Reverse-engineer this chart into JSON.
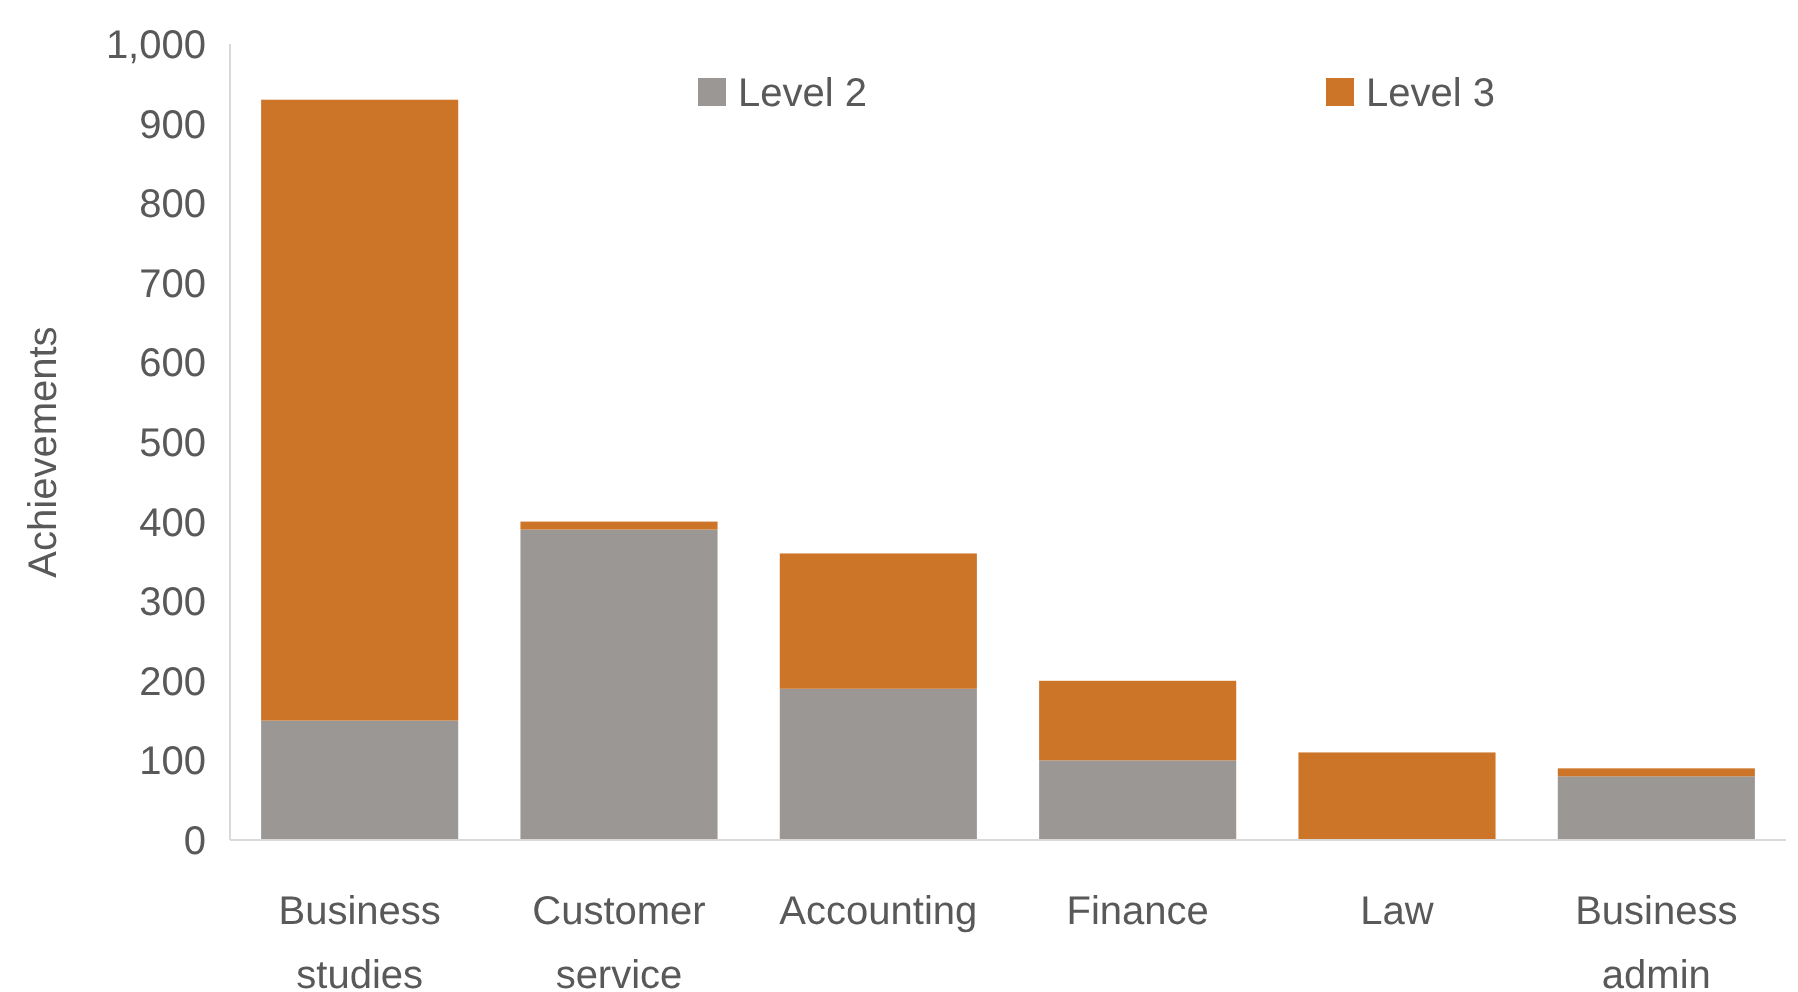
{
  "chart_data": {
    "type": "bar",
    "stacked": true,
    "ylabel": "Achievements",
    "categories": [
      "Business studies",
      "Customer service",
      "Accounting",
      "Finance",
      "Law",
      "Business admin"
    ],
    "series": [
      {
        "name": "Level 2",
        "color": "#9b9794",
        "values": [
          150,
          390,
          190,
          100,
          0,
          80
        ]
      },
      {
        "name": "Level 3",
        "color": "#cc7428",
        "values": [
          780,
          10,
          170,
          100,
          110,
          10
        ]
      }
    ],
    "ylim": [
      0,
      1000
    ],
    "yticks": [
      0,
      100,
      200,
      300,
      400,
      500,
      600,
      700,
      800,
      900,
      {
        "value": 1000,
        "label": "1,000"
      }
    ],
    "grid": false,
    "legend": "top"
  }
}
